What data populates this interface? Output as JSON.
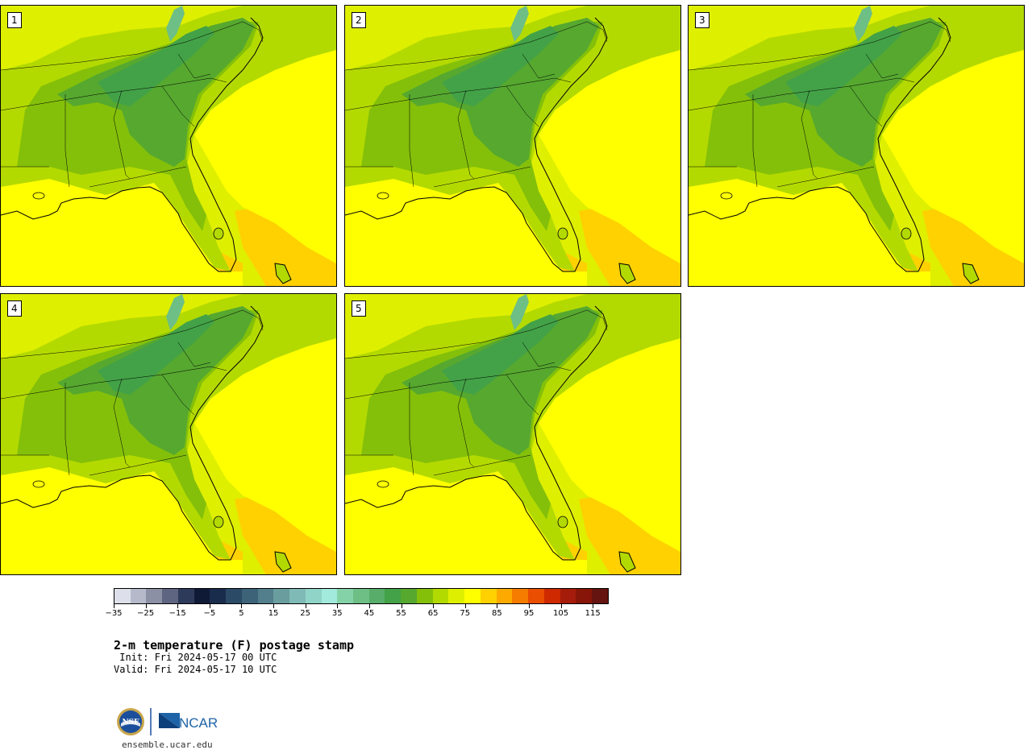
{
  "panels": [
    {
      "label": "1"
    },
    {
      "label": "2"
    },
    {
      "label": "3"
    },
    {
      "label": "4"
    },
    {
      "label": "5"
    }
  ],
  "colorbar": {
    "colors": [
      "#dde0ea",
      "#b6b9c9",
      "#8c90a5",
      "#5e6581",
      "#2e3a5a",
      "#0f1a36",
      "#1a2c4c",
      "#2b4a66",
      "#3d6378",
      "#527f8b",
      "#6a9d9e",
      "#80bab6",
      "#90d4c8",
      "#a1eadc",
      "#84d3a8",
      "#6dbf86",
      "#58ad6a",
      "#43a247",
      "#56a82f",
      "#84c00a",
      "#b3da00",
      "#dfef00",
      "#ffff00",
      "#ffd100",
      "#fcaa00",
      "#f67c00",
      "#ea4e00",
      "#cf2900",
      "#a61c0a",
      "#871608",
      "#651410"
    ],
    "ticks": [
      "−35",
      "−25",
      "−15",
      "−5",
      "5",
      "15",
      "25",
      "35",
      "45",
      "55",
      "65",
      "75",
      "85",
      "95",
      "105",
      "115"
    ]
  },
  "title": "2-m temperature (F) postage stamp",
  "init": " Init: Fri 2024-05-17 00 UTC",
  "valid": "Valid: Fri 2024-05-17 10 UTC",
  "logo": {
    "nsf_text": "NSF",
    "ncar_text": "NCAR",
    "colors": {
      "nsf_blue": "#1b4f9c",
      "nsf_gold": "#c9a64b",
      "ncar_blue": "#1e63a8"
    }
  },
  "site": "ensemble.ucar.edu",
  "map_colors": {
    "ocean_warm": "#ffd100",
    "ocean_mid": "#ffff00",
    "ocean_cool": "#dfef00",
    "land_light": "#b3da00",
    "land_mid": "#84c00a",
    "land_dark": "#56a82f",
    "mountain": "#43a247",
    "ridge": "#6dbf86"
  }
}
